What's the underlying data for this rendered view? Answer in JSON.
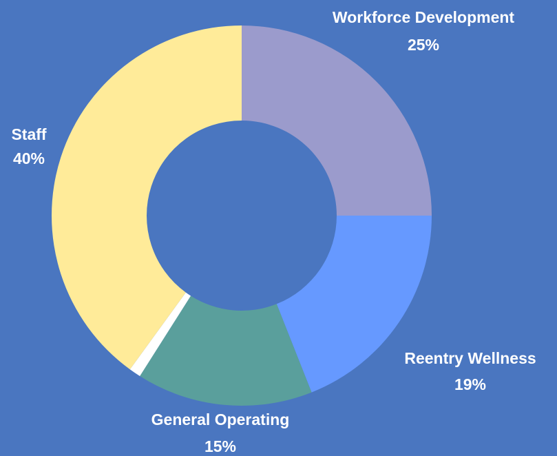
{
  "chart_data": {
    "type": "donut",
    "categories": [
      "Workforce Development",
      "Reentry Wellness",
      "General Operating",
      null,
      "Staff"
    ],
    "values": [
      25,
      19,
      15,
      1,
      40
    ],
    "value_labels": [
      "25%",
      "19%",
      "15%",
      null,
      "40%"
    ],
    "colors": [
      "#9b9bcc",
      "#6699ff",
      "#5a9f9c",
      "#ffffff",
      "#ffeb99"
    ]
  }
}
